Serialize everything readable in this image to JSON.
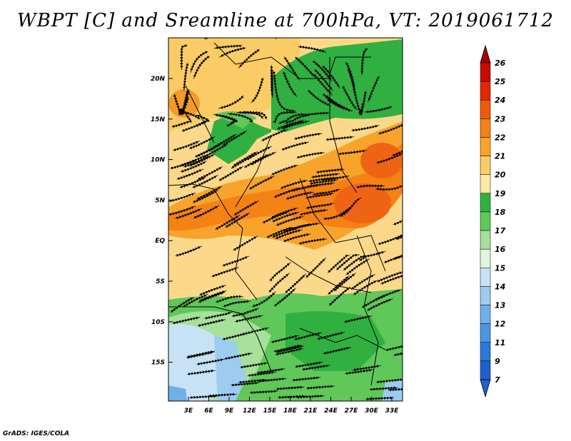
{
  "title": "WBPT [C] and Sreamline at 700hPa, VT: 2019061712",
  "credit": "GrADS: IGES/COLA",
  "map": {
    "lat_labels": [
      "20N",
      "15N",
      "10N",
      "5N",
      "EQ",
      "5S",
      "10S",
      "15S"
    ],
    "lon_labels": [
      "3E",
      "6E",
      "9E",
      "12E",
      "15E",
      "18E",
      "21E",
      "24E",
      "27E",
      "30E",
      "33E"
    ]
  },
  "colorbar": {
    "levels": [
      "26",
      "25",
      "24",
      "23",
      "22",
      "21",
      "20",
      "19",
      "18",
      "17",
      "16",
      "15",
      "14",
      "13",
      "12",
      "11",
      "9",
      "7"
    ],
    "colors": [
      "#a50000",
      "#c80a00",
      "#e02800",
      "#ef5a0a",
      "#f58214",
      "#f8a42c",
      "#fbcc66",
      "#fde8a4",
      "#30b040",
      "#60c858",
      "#a6e09a",
      "#e2f5df",
      "#c8e2f5",
      "#9cccf0",
      "#70b0e8",
      "#4c96e0",
      "#2c78d8",
      "#1f60d0"
    ]
  }
}
